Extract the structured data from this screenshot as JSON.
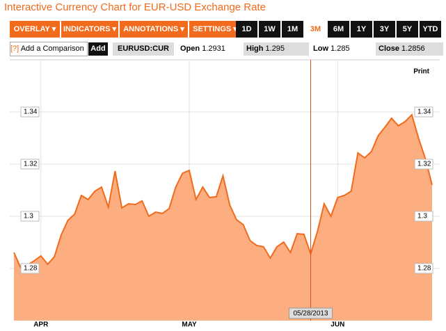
{
  "header": {
    "title": "Interactive Currency Chart for EUR-USD Exchange Rate"
  },
  "toolbar": {
    "menus": [
      "OVERLAY ▾",
      "INDICATORS ▾",
      "ANNOTATIONS ▾",
      "SETTINGS ▾"
    ],
    "ranges": [
      "1D",
      "1W",
      "1M",
      "3M",
      "6M",
      "1Y",
      "3Y",
      "5Y",
      "YTD"
    ],
    "selected_range": "3M"
  },
  "quote": {
    "help": "[?]",
    "comparison": "Add a Comparison",
    "add": "Add",
    "symbol": "EURUSD:CUR",
    "open_label": "Open",
    "open": "1.2931",
    "high_label": "High",
    "high": "1.295",
    "low_label": "Low",
    "low": "1.285",
    "close_label": "Close",
    "close": "1.2856"
  },
  "print": "Print",
  "chart_data": {
    "type": "area",
    "color": "#f26a1b",
    "fill": "#fcae80",
    "categories": [
      null,
      null,
      null,
      null,
      null,
      null,
      null,
      null,
      null,
      null,
      null,
      null,
      null,
      null,
      null,
      null,
      null,
      null,
      null,
      null,
      null,
      null,
      null,
      null,
      null,
      null,
      null,
      null,
      null,
      null,
      null,
      null,
      null,
      null,
      null,
      null,
      null,
      null,
      null,
      null,
      null,
      null,
      null,
      null,
      null,
      null,
      null,
      null,
      null,
      null,
      null,
      null,
      null,
      null,
      null,
      null,
      null,
      null,
      null,
      null,
      null,
      null,
      null
    ],
    "values": [
      1.2861,
      1.2803,
      1.2813,
      1.2829,
      1.2848,
      1.2816,
      1.2845,
      1.2928,
      1.2984,
      1.3008,
      1.308,
      1.3064,
      1.3096,
      1.3112,
      1.3035,
      1.3173,
      1.3032,
      1.3048,
      1.3045,
      1.3059,
      1.3,
      1.3016,
      1.3011,
      1.3029,
      1.3112,
      1.3165,
      1.3176,
      1.3064,
      1.3112,
      1.3072,
      1.3075,
      1.3155,
      1.3043,
      1.2987,
      1.2968,
      1.2907,
      1.2888,
      1.2883,
      1.284,
      1.2883,
      1.2901,
      1.2861,
      1.2933,
      1.2931,
      1.2856,
      1.2941,
      1.3048,
      1.3,
      1.3072,
      1.308,
      1.3096,
      1.3243,
      1.3224,
      1.3248,
      1.3309,
      1.3341,
      1.3376,
      1.3347,
      1.3363,
      1.3389,
      1.3299,
      1.3221,
      1.312
    ],
    "ylim": [
      1.26,
      1.36
    ],
    "yticks": [
      1.28,
      1.3,
      1.32,
      1.34
    ],
    "xticks": [
      {
        "value": 4,
        "label": "APR"
      },
      {
        "value": 26,
        "label": "MAY"
      },
      {
        "value": 48,
        "label": "JUN"
      }
    ],
    "crosshair": {
      "value": 44,
      "label": "05/28/2013"
    },
    "grid": true
  }
}
